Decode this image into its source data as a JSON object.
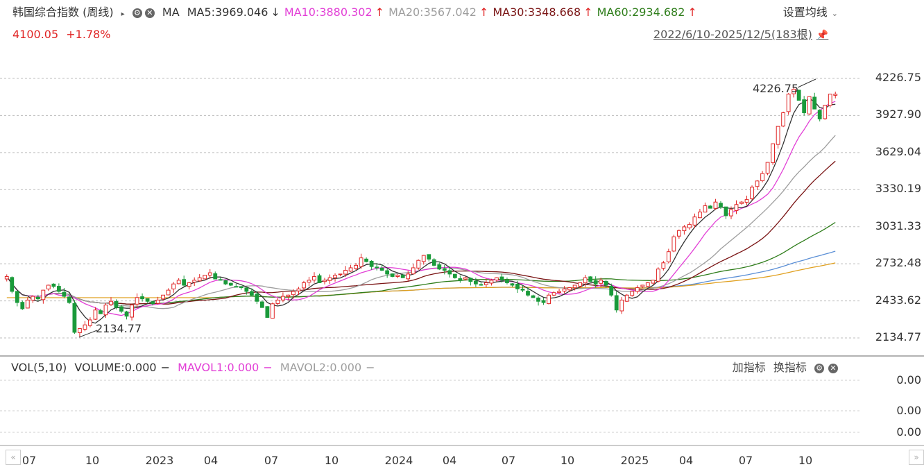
{
  "header": {
    "title": "韩国综合指数 (周线)",
    "indicator": "MA",
    "price": "4100.05",
    "change": "+1.78%",
    "ma_items": [
      {
        "label": "MA5:3969.046",
        "arrow": "↓",
        "color": "#333333"
      },
      {
        "label": "MA10:3880.302",
        "arrow": "↑",
        "color": "#e23fd6"
      },
      {
        "label": "MA20:3567.042",
        "arrow": "↑",
        "color": "#9e9e9e"
      },
      {
        "label": "MA30:3348.668",
        "arrow": "↑",
        "color": "#7a1414"
      },
      {
        "label": "MA60:2934.682",
        "arrow": "↑",
        "color": "#2e7d1a"
      }
    ],
    "settings_label": "设置均线",
    "range_label": "2022/6/10-2025/12/5(183根)"
  },
  "volume_header": {
    "vol_label": "VOL(5,10)",
    "volume": "VOLUME:0.000",
    "mavol1": "MAVOL1:0.000",
    "mavol2": "MAVOL2:0.000",
    "add_indicator": "加指标",
    "switch_indicator": "换指标"
  },
  "chart_data": {
    "type": "candlestick",
    "ylim": [
      2134.77,
      4226.75
    ],
    "y_ticks": [
      "4226.75",
      "3927.90",
      "3629.04",
      "3330.19",
      "3031.33",
      "2732.48",
      "2433.62",
      "2134.77"
    ],
    "x_ticks": [
      "07",
      "10",
      "2023",
      "04",
      "07",
      "10",
      "2024",
      "04",
      "07",
      "10",
      "2025",
      "04",
      "07",
      "10"
    ],
    "annotations": [
      {
        "text": "4226.75",
        "value": 4226.75
      },
      {
        "text": "2134.77",
        "value": 2134.77
      }
    ],
    "volume_ticks": [
      "0.00",
      "0.00",
      "0.00"
    ],
    "closes": [
      2630,
      2510,
      2420,
      2370,
      2440,
      2470,
      2450,
      2520,
      2560,
      2550,
      2510,
      2470,
      2420,
      2180,
      2210,
      2240,
      2280,
      2360,
      2330,
      2400,
      2430,
      2380,
      2350,
      2310,
      2400,
      2460,
      2450,
      2430,
      2410,
      2440,
      2480,
      2520,
      2570,
      2600,
      2560,
      2580,
      2600,
      2620,
      2640,
      2660,
      2610,
      2600,
      2570,
      2560,
      2550,
      2540,
      2510,
      2480,
      2430,
      2380,
      2300,
      2410,
      2440,
      2470,
      2480,
      2510,
      2530,
      2580,
      2600,
      2630,
      2580,
      2600,
      2620,
      2640,
      2650,
      2680,
      2700,
      2720,
      2780,
      2750,
      2710,
      2700,
      2680,
      2650,
      2630,
      2640,
      2620,
      2650,
      2700,
      2760,
      2800,
      2770,
      2720,
      2690,
      2680,
      2650,
      2620,
      2600,
      2620,
      2590,
      2570,
      2560,
      2580,
      2600,
      2620,
      2600,
      2580,
      2560,
      2530,
      2520,
      2480,
      2460,
      2430,
      2420,
      2480,
      2500,
      2510,
      2530,
      2540,
      2560,
      2580,
      2620,
      2590,
      2570,
      2600,
      2560,
      2480,
      2360,
      2440,
      2480,
      2510,
      2540,
      2560,
      2580,
      2600,
      2690,
      2740,
      2830,
      2950,
      3000,
      3030,
      3050,
      3110,
      3150,
      3200,
      3180,
      3230,
      3190,
      3120,
      3170,
      3210,
      3230,
      3250,
      3350,
      3400,
      3460,
      3550,
      3700,
      3840,
      3950,
      4100,
      4140,
      4050,
      3950,
      4080,
      3980,
      3900,
      4010,
      4100,
      4100
    ],
    "series": [
      {
        "name": "MA5",
        "color": "#333333",
        "last": 3969.046
      },
      {
        "name": "MA10",
        "color": "#e23fd6",
        "last": 3880.302
      },
      {
        "name": "MA20",
        "color": "#9e9e9e",
        "last": 3567.042
      },
      {
        "name": "MA30",
        "color": "#7a1414",
        "last": 3348.668
      },
      {
        "name": "MA60",
        "color": "#2e7d1a",
        "last": 2934.682
      }
    ]
  }
}
